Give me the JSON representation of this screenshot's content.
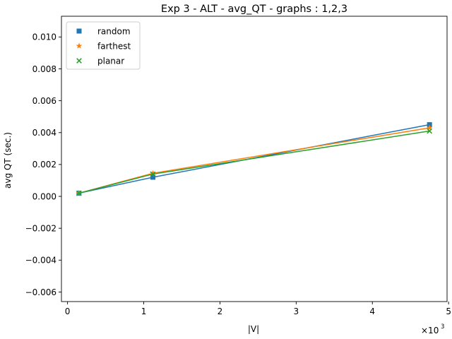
{
  "chart_data": {
    "type": "line",
    "title": "Exp 3 - ALT - avg_QT - graphs : 1,2,3",
    "xlabel": "|V|",
    "ylabel": "avg QT (sec.)",
    "x_multiplier_base": "×10",
    "x_multiplier_exp": "3",
    "xlim": [
      -0.08,
      4.98
    ],
    "ylim": [
      -0.0066,
      0.0113
    ],
    "xticks": [
      0,
      1,
      2,
      3,
      4,
      5
    ],
    "xtick_labels": [
      "0",
      "1",
      "2",
      "3",
      "4",
      "5"
    ],
    "yticks": [
      -0.006,
      -0.004,
      -0.002,
      0.0,
      0.002,
      0.004,
      0.006,
      0.008,
      0.01
    ],
    "ytick_labels": [
      "−0.006",
      "−0.004",
      "−0.002",
      "0.000",
      "0.002",
      "0.004",
      "0.006",
      "0.008",
      "0.010"
    ],
    "x": [
      0.15,
      1.12,
      4.75
    ],
    "series": [
      {
        "name": "random",
        "color": "#1f77b4",
        "marker": "square",
        "values": [
          0.0002,
          0.0012,
          0.0045
        ]
      },
      {
        "name": "farthest",
        "color": "#ff7f0e",
        "marker": "star",
        "values": [
          0.0002,
          0.00145,
          0.0043
        ]
      },
      {
        "name": "planar",
        "color": "#2ca02c",
        "marker": "x",
        "values": [
          0.0002,
          0.0014,
          0.0041
        ]
      }
    ],
    "grid": false,
    "legend_position": "top-left"
  }
}
